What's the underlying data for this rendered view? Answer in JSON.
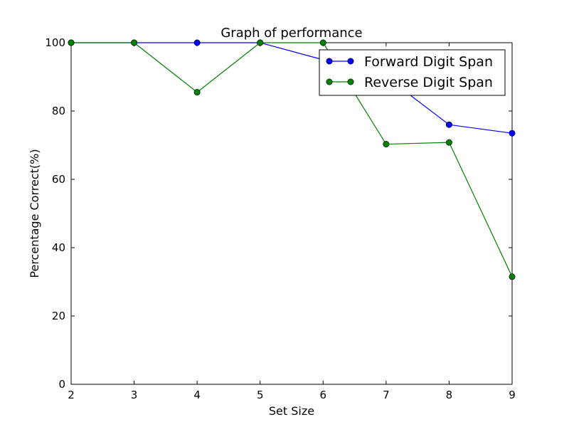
{
  "chart_data": {
    "type": "line",
    "title": "Graph of performance",
    "xlabel": "Set Size",
    "ylabel": "Percentage Correct(%)",
    "x": [
      2,
      3,
      4,
      5,
      6,
      7,
      8,
      9
    ],
    "xlim": [
      2,
      9
    ],
    "ylim": [
      0,
      100
    ],
    "xticks": [
      2,
      3,
      4,
      5,
      6,
      7,
      8,
      9
    ],
    "yticks": [
      0,
      20,
      40,
      60,
      80,
      100
    ],
    "grid": false,
    "legend_position": "top-right",
    "series": [
      {
        "name": "Forward Digit Span",
        "color": "#0000ff",
        "marker": "circle",
        "values": [
          100,
          100,
          100,
          100,
          95,
          90,
          76,
          73.5
        ]
      },
      {
        "name": "Reverse Digit Span",
        "color": "#008000",
        "marker": "circle",
        "values": [
          100,
          100,
          85.5,
          100,
          100,
          70.3,
          70.8,
          31.5
        ]
      }
    ]
  }
}
